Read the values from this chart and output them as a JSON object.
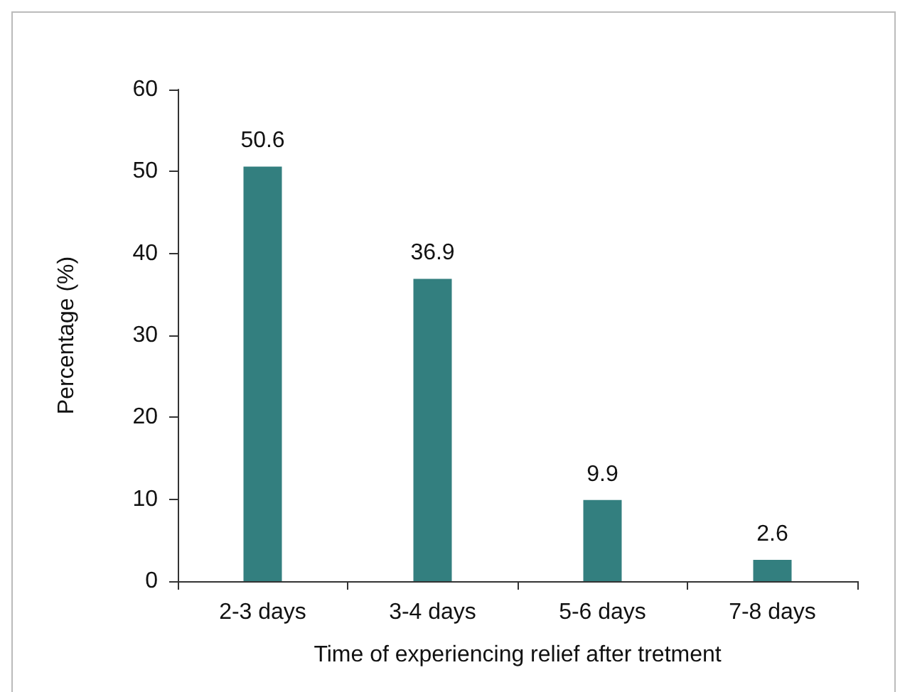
{
  "chart_data": {
    "type": "bar",
    "xlabel": "Time of experiencing relief after tretment",
    "ylabel": "Percentage (%)",
    "categories": [
      "2-3 days",
      "3-4 days",
      "5-6 days",
      "7-8 days"
    ],
    "values": [
      50.6,
      36.9,
      9.9,
      2.6
    ],
    "color": "#337f7f",
    "ylim": [
      0,
      60
    ],
    "yticks": [
      0,
      10,
      20,
      30,
      40,
      50,
      60
    ],
    "data_labels": true
  }
}
